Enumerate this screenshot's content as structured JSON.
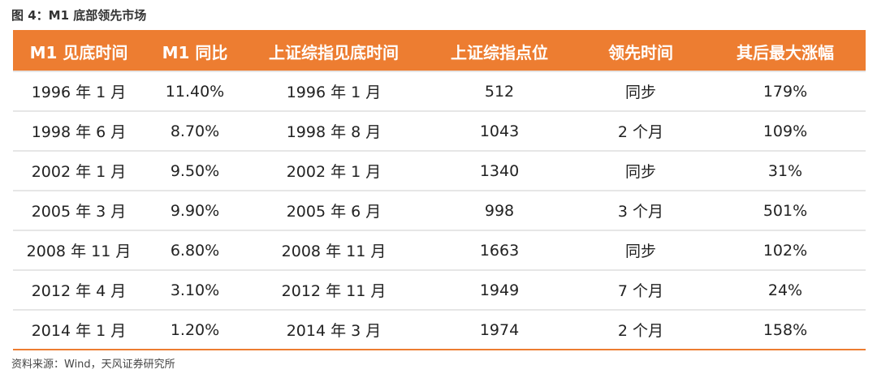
{
  "title": "图 4：M1 底部领先市场",
  "table": {
    "header": [
      "M1 见底时间",
      "M1 同比",
      "上证综指见底时间",
      "上证综指点位",
      "领先时间",
      "其后最大涨幅"
    ],
    "rows": [
      [
        "1996 年 1 月",
        "11.40%",
        "1996 年 1 月",
        "512",
        "同步",
        "179%"
      ],
      [
        "1998 年 6 月",
        "8.70%",
        "1998 年 8 月",
        "1043",
        "2 个月",
        "109%"
      ],
      [
        "2002 年 1 月",
        "9.50%",
        "2002 年 1 月",
        "1340",
        "同步",
        "31%"
      ],
      [
        "2005 年 3 月",
        "9.90%",
        "2005 年 6 月",
        "998",
        "3 个月",
        "501%"
      ],
      [
        "2008 年 11 月",
        "6.80%",
        "2008 年 11 月",
        "1663",
        "同步",
        "102%"
      ],
      [
        "2012 年 4 月",
        "3.10%",
        "2012 年 11 月",
        "1949",
        "7 个月",
        "24%"
      ],
      [
        "2014 年 1 月",
        "1.20%",
        "2014 年 3 月",
        "1974",
        "2 个月",
        "158%"
      ]
    ]
  },
  "source": "资料来源：Wind，天风证券研究所"
}
